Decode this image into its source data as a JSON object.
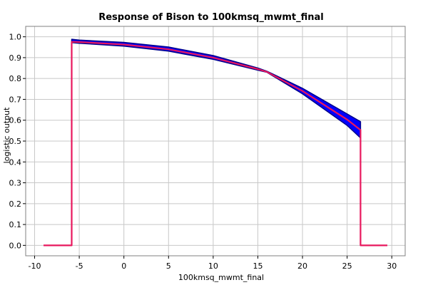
{
  "chart_data": {
    "type": "line",
    "title": "Response of Bison to 100kmsq_mwmt_final",
    "xlabel": "100kmsq_mwmt_final",
    "ylabel": "logistic output",
    "xlim": [
      -11,
      31.5
    ],
    "ylim": [
      -0.05,
      1.05
    ],
    "x_ticks": [
      -10,
      -5,
      0,
      5,
      10,
      15,
      20,
      25,
      30
    ],
    "y_ticks": [
      0.0,
      0.1,
      0.2,
      0.3,
      0.4,
      0.5,
      0.6,
      0.7,
      0.8,
      0.9,
      1.0
    ],
    "grid": true,
    "colors": {
      "mean": "#e8175d",
      "band": "#0000ff",
      "band_edge": "#00008b"
    },
    "series": [
      {
        "role": "mean",
        "x": [
          -9,
          -5.85,
          -5.85,
          -5,
          0,
          5,
          10,
          15,
          16,
          20,
          25,
          26.5,
          26.5,
          29.5
        ],
        "y": [
          0.0,
          0.0,
          0.976,
          0.975,
          0.963,
          0.94,
          0.9,
          0.845,
          0.832,
          0.74,
          0.603,
          0.553,
          0.0,
          0.0
        ]
      },
      {
        "role": "upper",
        "x": [
          -5.85,
          -5,
          0,
          5,
          10,
          15,
          16,
          20,
          25,
          26.5
        ],
        "y": [
          0.988,
          0.984,
          0.973,
          0.951,
          0.91,
          0.85,
          0.835,
          0.753,
          0.63,
          0.593
        ]
      },
      {
        "role": "lower",
        "x": [
          -5.85,
          -5,
          0,
          5,
          10,
          15,
          16,
          20,
          25,
          26.5
        ],
        "y": [
          0.972,
          0.969,
          0.955,
          0.931,
          0.892,
          0.84,
          0.83,
          0.727,
          0.575,
          0.515
        ]
      }
    ]
  }
}
